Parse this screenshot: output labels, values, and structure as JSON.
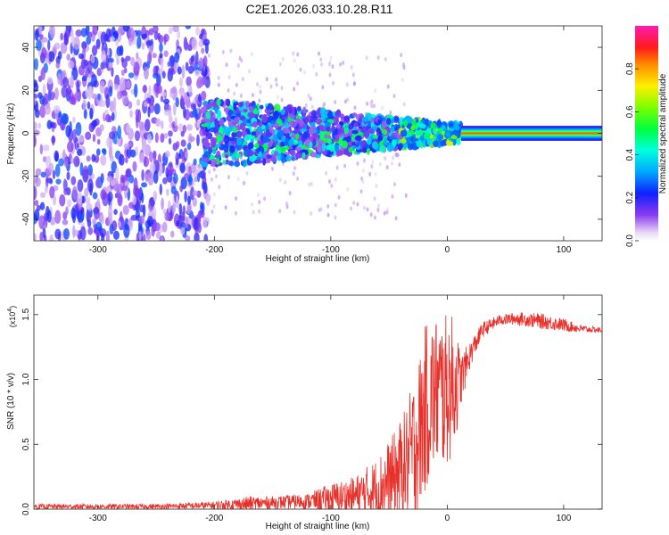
{
  "title": "C2E1.2026.033.10.28.R11",
  "chart_data": [
    {
      "type": "heatmap",
      "xlabel": "Height of straight line (km)",
      "ylabel": "Frequency (Hz)",
      "xlim": [
        -355,
        133
      ],
      "ylim": [
        -50,
        50
      ],
      "xticks": [
        -300,
        -200,
        -100,
        0,
        100
      ],
      "yticks": [
        -40,
        -20,
        0,
        20,
        40
      ],
      "colorbar": {
        "label": "Normalized spectral amplitude",
        "range": [
          0,
          1
        ],
        "ticks": [
          0.0,
          0.2,
          0.4,
          0.6,
          0.8
        ],
        "tick_labels": [
          "0.0",
          "0.2",
          "0.4",
          "0.6",
          "0.8"
        ]
      },
      "features": {
        "noise_region_x": [
          -355,
          -205
        ],
        "signal_band_x": [
          -210,
          133
        ],
        "signal_center_freq_hz": 0,
        "tone_region_x": [
          12,
          133
        ]
      }
    },
    {
      "type": "line",
      "xlabel": "Height of straight line (km)",
      "ylabel": "SNR (10 * v/v)",
      "y_multiplier": "(x10",
      "y_multiplier_exp": "4",
      "y_multiplier_close": ")",
      "xlim": [
        -355,
        133
      ],
      "ylim": [
        0,
        1.65
      ],
      "xticks": [
        -300,
        -200,
        -100,
        0,
        100
      ],
      "yticks": [
        0.0,
        0.5,
        1.0,
        1.5
      ],
      "ytick_labels": [
        "0.0",
        "0.5",
        "1.0",
        "1.5"
      ],
      "series": [
        {
          "name": "SNR",
          "color": "#e8302a",
          "envelope": [
            {
              "x": -355,
              "base": 0.02,
              "amp": 0.02
            },
            {
              "x": -250,
              "base": 0.02,
              "amp": 0.02
            },
            {
              "x": -200,
              "base": 0.03,
              "amp": 0.03
            },
            {
              "x": -170,
              "base": 0.04,
              "amp": 0.06
            },
            {
              "x": -150,
              "base": 0.05,
              "amp": 0.05
            },
            {
              "x": -120,
              "base": 0.06,
              "amp": 0.06
            },
            {
              "x": -100,
              "base": 0.08,
              "amp": 0.12
            },
            {
              "x": -80,
              "base": 0.1,
              "amp": 0.15
            },
            {
              "x": -60,
              "base": 0.15,
              "amp": 0.25
            },
            {
              "x": -45,
              "base": 0.25,
              "amp": 0.35
            },
            {
              "x": -35,
              "base": 0.35,
              "amp": 0.45
            },
            {
              "x": -25,
              "base": 0.55,
              "amp": 0.6
            },
            {
              "x": -18,
              "base": 0.8,
              "amp": 0.65
            },
            {
              "x": -10,
              "base": 0.9,
              "amp": 0.6
            },
            {
              "x": -3,
              "base": 0.9,
              "amp": 0.6
            },
            {
              "x": 5,
              "base": 0.95,
              "amp": 0.55
            },
            {
              "x": 12,
              "base": 1.0,
              "amp": 0.2
            },
            {
              "x": 20,
              "base": 1.2,
              "amp": 0.1
            },
            {
              "x": 30,
              "base": 1.38,
              "amp": 0.06
            },
            {
              "x": 45,
              "base": 1.46,
              "amp": 0.04
            },
            {
              "x": 60,
              "base": 1.47,
              "amp": 0.05
            },
            {
              "x": 80,
              "base": 1.45,
              "amp": 0.06
            },
            {
              "x": 100,
              "base": 1.42,
              "amp": 0.05
            },
            {
              "x": 115,
              "base": 1.39,
              "amp": 0.03
            },
            {
              "x": 133,
              "base": 1.38,
              "amp": 0.02
            }
          ]
        }
      ]
    }
  ]
}
